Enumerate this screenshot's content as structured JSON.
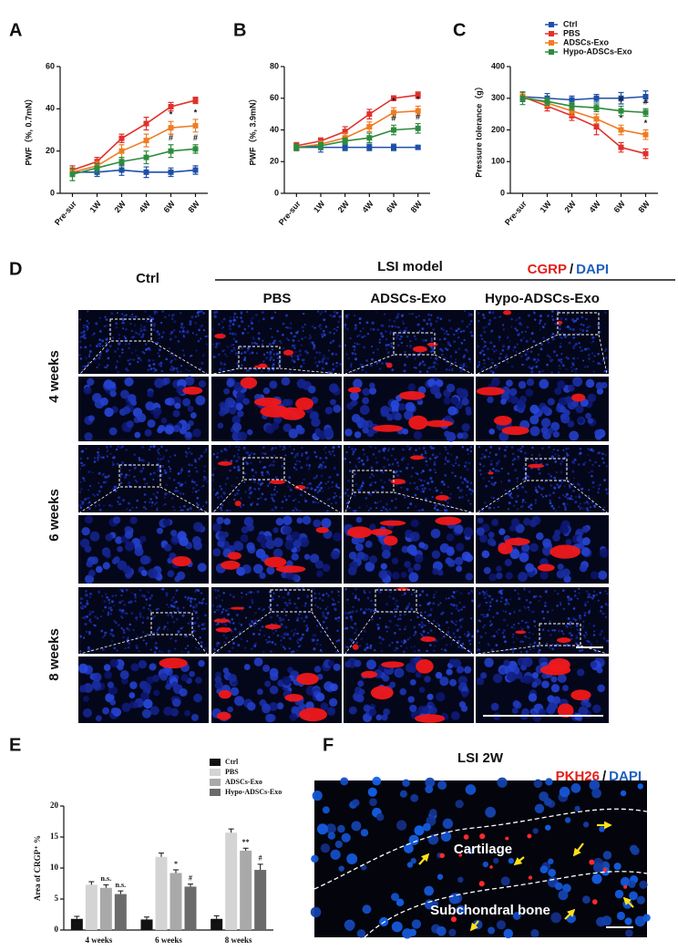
{
  "panel_letters": [
    "A",
    "B",
    "C",
    "D",
    "E",
    "F"
  ],
  "chart_data": [
    {
      "type": "line",
      "ylabel": "PWF（%, 0.7mN）",
      "categories": [
        "Pre-sur",
        "1W",
        "2W",
        "4W",
        "6W",
        "8W"
      ],
      "ylim": [
        0,
        60
      ],
      "yticks": [
        0,
        20,
        40,
        60
      ],
      "legend": false,
      "series": [
        {
          "name": "Ctrl",
          "color": "#1f4fa8",
          "values": [
            10,
            10,
            11,
            10,
            10,
            11
          ],
          "errors": [
            2,
            2,
            2.5,
            2.5,
            2,
            2
          ],
          "labels": [
            null,
            null,
            null,
            null,
            null,
            null
          ]
        },
        {
          "name": "PBS",
          "color": "#e0312b",
          "values": [
            11,
            15,
            26,
            33,
            41,
            44
          ],
          "errors": [
            2,
            2,
            2,
            3,
            2,
            1.5
          ],
          "labels": [
            null,
            null,
            null,
            null,
            null,
            null
          ]
        },
        {
          "name": "ADSCs-Exo",
          "color": "#f07c22",
          "values": [
            10,
            13,
            20,
            25,
            31,
            32
          ],
          "errors": [
            2,
            2,
            3,
            3,
            3,
            3
          ],
          "labels": [
            null,
            null,
            null,
            null,
            "*",
            "*"
          ]
        },
        {
          "name": "Hypo-ADSCs-Exo",
          "color": "#2e8b3e",
          "values": [
            9,
            12,
            15,
            17,
            20,
            21
          ],
          "errors": [
            3,
            2,
            2,
            3,
            3,
            2
          ],
          "labels": [
            null,
            null,
            null,
            null,
            "#",
            "#"
          ]
        }
      ]
    },
    {
      "type": "line",
      "ylabel": "PWF（%, 3.9mN）",
      "categories": [
        "Pre-sur",
        "1W",
        "2W",
        "4W",
        "6W",
        "8W"
      ],
      "ylim": [
        0,
        80
      ],
      "yticks": [
        0,
        20,
        40,
        60,
        80
      ],
      "legend": false,
      "series": [
        {
          "name": "Ctrl",
          "color": "#1f4fa8",
          "values": [
            29,
            29,
            29,
            29,
            29,
            29
          ],
          "errors": [
            2,
            3,
            2,
            2,
            2,
            1
          ],
          "labels": [
            null,
            null,
            null,
            null,
            null,
            null
          ]
        },
        {
          "name": "PBS",
          "color": "#e0312b",
          "values": [
            30,
            33,
            39,
            50,
            60,
            62
          ],
          "errors": [
            2,
            2,
            3,
            3,
            1.5,
            2
          ],
          "labels": [
            null,
            null,
            null,
            null,
            null,
            null
          ]
        },
        {
          "name": "ADSCs-Exo",
          "color": "#f07c22",
          "values": [
            29,
            31,
            35,
            42,
            51,
            52
          ],
          "errors": [
            2,
            2,
            3,
            3,
            3,
            3
          ],
          "labels": [
            null,
            null,
            null,
            null,
            "*",
            "*"
          ]
        },
        {
          "name": "Hypo-ADSCs-Exo",
          "color": "#2e8b3e",
          "values": [
            29,
            30,
            33,
            35,
            40,
            41
          ],
          "errors": [
            2,
            2,
            2,
            3,
            3,
            3
          ],
          "labels": [
            null,
            null,
            null,
            null,
            "#",
            "#"
          ]
        }
      ]
    },
    {
      "type": "line",
      "ylabel": "Pressure tolerance（g）",
      "categories": [
        "Pre-sur",
        "1W",
        "2W",
        "4W",
        "6W",
        "8W"
      ],
      "ylim": [
        0,
        400
      ],
      "yticks": [
        0,
        100,
        200,
        300,
        400
      ],
      "legend": true,
      "series": [
        {
          "name": "Ctrl",
          "color": "#1f4fa8",
          "values": [
            305,
            300,
            295,
            300,
            300,
            305
          ],
          "errors": [
            15,
            15,
            12,
            12,
            18,
            18
          ],
          "labels": [
            null,
            null,
            null,
            null,
            null,
            null
          ]
        },
        {
          "name": "PBS",
          "color": "#e0312b",
          "values": [
            305,
            275,
            245,
            210,
            145,
            125
          ],
          "errors": [
            12,
            15,
            15,
            25,
            15,
            15
          ],
          "labels": [
            null,
            null,
            null,
            null,
            null,
            null
          ]
        },
        {
          "name": "ADSCs-Exo",
          "color": "#f07c22",
          "values": [
            305,
            285,
            260,
            235,
            200,
            185
          ],
          "errors": [
            12,
            12,
            15,
            15,
            15,
            15
          ],
          "labels": [
            null,
            null,
            null,
            null,
            "*",
            "*"
          ]
        },
        {
          "name": "Hypo-ADSCs-Exo",
          "color": "#2e8b3e",
          "values": [
            300,
            290,
            275,
            270,
            260,
            255
          ],
          "errors": [
            20,
            12,
            12,
            12,
            15,
            12
          ],
          "labels": [
            null,
            null,
            null,
            null,
            "#",
            "#"
          ]
        }
      ]
    },
    {
      "type": "bar",
      "ylabel": "Area of CRGP⁺ %",
      "categories": [
        "4 weeks",
        "6 weeks",
        "8 weeks"
      ],
      "ylim": [
        0,
        20
      ],
      "yticks": [
        0,
        5,
        10,
        15,
        20
      ],
      "legend": true,
      "series": [
        {
          "name": "Ctrl",
          "color": "#111111",
          "values": [
            1.8,
            1.7,
            1.8
          ],
          "errors": [
            0.4,
            0.4,
            0.5
          ],
          "labels": [
            null,
            null,
            null
          ]
        },
        {
          "name": "PBS",
          "color": "#d4d4d4",
          "values": [
            7.3,
            11.8,
            15.7
          ],
          "errors": [
            0.5,
            0.6,
            0.6
          ],
          "labels": [
            null,
            null,
            null
          ]
        },
        {
          "name": "ADSCs-Exo",
          "color": "#a9a9a9",
          "values": [
            6.8,
            9.2,
            12.8
          ],
          "errors": [
            0.5,
            0.5,
            0.4
          ],
          "labels": [
            "n.s.",
            "*",
            "**"
          ]
        },
        {
          "name": "Hypo-ADSCs-Exo",
          "color": "#6b6b6b",
          "values": [
            5.8,
            7.0,
            9.7
          ],
          "errors": [
            0.5,
            0.4,
            0.9
          ],
          "labels": [
            "n.s.",
            "#",
            "#"
          ]
        }
      ]
    }
  ],
  "panel_d": {
    "ctrl": "Ctrl",
    "model": "LSI model",
    "stain": [
      "CGRP",
      "/",
      "DAPI"
    ],
    "groups": [
      "PBS",
      "ADSCs-Exo",
      "Hypo-ADSCs-Exo"
    ],
    "rows": [
      "4 weeks",
      "6 weeks",
      "8 weeks"
    ]
  },
  "panel_f": {
    "title": "LSI 2W",
    "stain": [
      "PKH26",
      "/",
      "DAPI"
    ],
    "regions": [
      "Cartilage",
      "Subchondral bone"
    ]
  }
}
